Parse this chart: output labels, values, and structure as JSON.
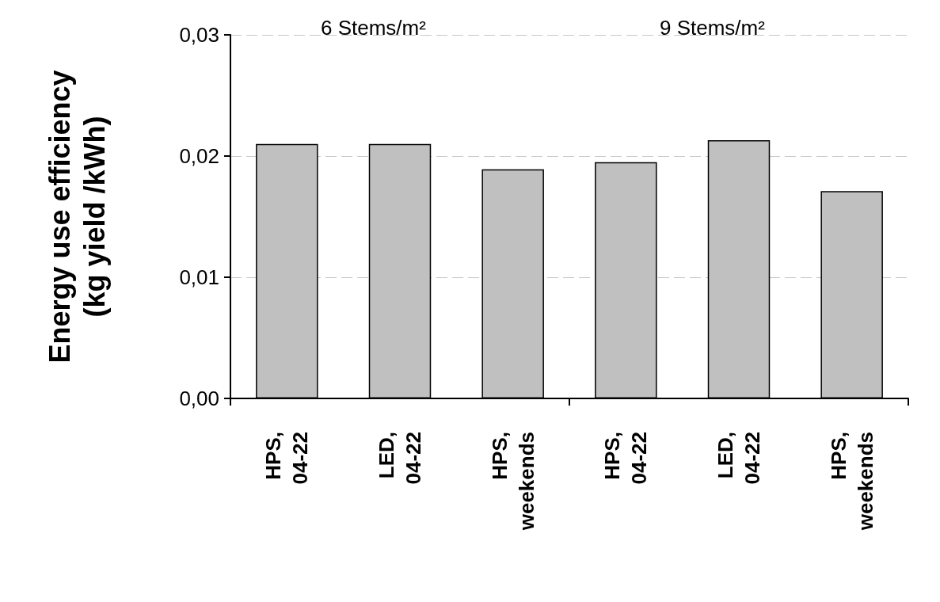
{
  "chart_data": {
    "type": "bar",
    "ylabel": "Energy use efficiency\n(kg yield /kWh)",
    "categories": [
      "HPS,\n04-22",
      "LED,\n04-22",
      "HPS,\nweekends",
      "HPS,\n04-22",
      "LED,\n04-22",
      "HPS,\nweekends"
    ],
    "values": [
      0.021,
      0.021,
      0.0189,
      0.0195,
      0.0213,
      0.0171
    ],
    "color": "#c0c0c0",
    "ylim": [
      0,
      0.03
    ],
    "yticks": [
      {
        "value": 0,
        "label": "0,00"
      },
      {
        "value": 0.01,
        "label": "0,01"
      },
      {
        "value": 0.02,
        "label": "0,02"
      },
      {
        "value": 0.03,
        "label": "0,03"
      }
    ],
    "grid": "y",
    "annotations": [
      "6 Stems/m²",
      "9 Stems/m²"
    ]
  }
}
